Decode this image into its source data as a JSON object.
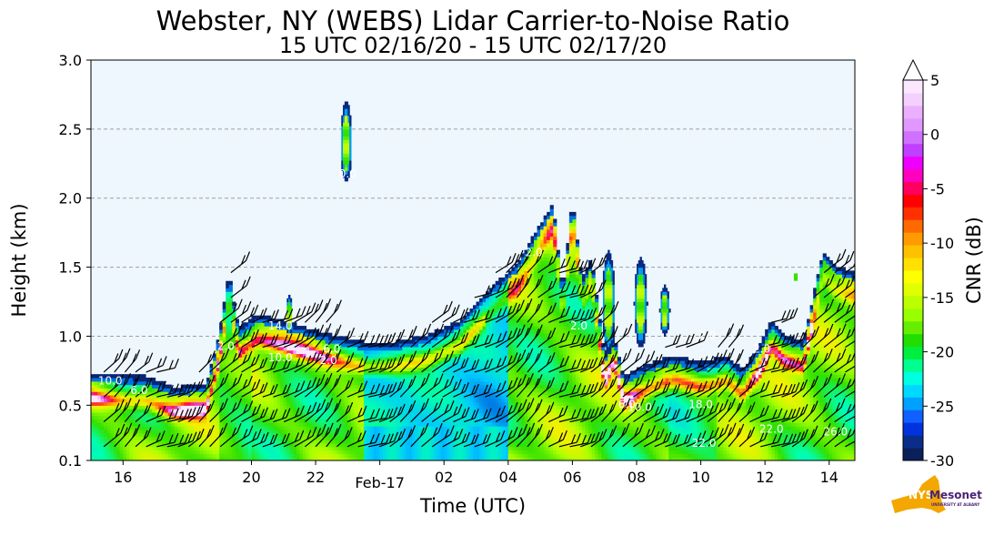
{
  "chart_data": {
    "type": "heatmap",
    "title": "Webster, NY (WEBS) Lidar Carrier-to-Noise Ratio",
    "subtitle": "15 UTC 02/16/20 - 15 UTC 02/17/20",
    "xlabel": "Time (UTC)",
    "ylabel": "Height (km)",
    "x_range_hours": [
      15,
      38.8
    ],
    "x_ticks": [
      {
        "h": 16,
        "label": "16"
      },
      {
        "h": 18,
        "label": "18"
      },
      {
        "h": 20,
        "label": "20"
      },
      {
        "h": 22,
        "label": "22"
      },
      {
        "h": 24,
        "label": "Feb-17"
      },
      {
        "h": 26,
        "label": "02"
      },
      {
        "h": 28,
        "label": "04"
      },
      {
        "h": 30,
        "label": "06"
      },
      {
        "h": 32,
        "label": "08"
      },
      {
        "h": 34,
        "label": "10"
      },
      {
        "h": 36,
        "label": "12"
      },
      {
        "h": 38,
        "label": "14"
      }
    ],
    "ylim": [
      0.1,
      3.0
    ],
    "y_ticks": [
      {
        "v": 0.1,
        "label": "0.1"
      },
      {
        "v": 0.5,
        "label": "0.5"
      },
      {
        "v": 1.0,
        "label": "1.0"
      },
      {
        "v": 1.5,
        "label": "1.5"
      },
      {
        "v": 2.0,
        "label": "2.0"
      },
      {
        "v": 2.5,
        "label": "2.5"
      },
      {
        "v": 3.0,
        "label": "3.0"
      }
    ],
    "grid": "horizontal dashed",
    "colorbar": {
      "label": "CNR (dB)",
      "min": -30,
      "max": 5,
      "ticks": [
        {
          "v": 5,
          "label": "5"
        },
        {
          "v": 0,
          "label": "0"
        },
        {
          "v": -5,
          "label": "-5"
        },
        {
          "v": -10,
          "label": "-10"
        },
        {
          "v": -15,
          "label": "-15"
        },
        {
          "v": -20,
          "label": "-20"
        },
        {
          "v": -25,
          "label": "-25"
        },
        {
          "v": -30,
          "label": "-30"
        }
      ],
      "colors": [
        "#0b1f5a",
        "#0a2d8a",
        "#0033dd",
        "#1060ff",
        "#00a0ff",
        "#00d8ff",
        "#00ffe0",
        "#00ff90",
        "#00ee40",
        "#22dd00",
        "#66ee00",
        "#99ff00",
        "#bbff00",
        "#e0ff00",
        "#ffff00",
        "#ffe000",
        "#ffc000",
        "#ff9a00",
        "#ff6a00",
        "#ff3000",
        "#ff0000",
        "#ff0060",
        "#ff00c0",
        "#ee00ff",
        "#c040ff",
        "#d070ff",
        "#e098ff",
        "#eab0ff",
        "#f4d0ff",
        "#fbe8ff"
      ]
    },
    "contour_labels": [
      {
        "h": 15.6,
        "v": 0.65,
        "text": "10.0"
      },
      {
        "h": 16.5,
        "v": 0.58,
        "text": "6.0"
      },
      {
        "h": 19.2,
        "v": 0.9,
        "text": "2.0"
      },
      {
        "h": 20.9,
        "v": 1.05,
        "text": "14.0"
      },
      {
        "h": 20.9,
        "v": 0.82,
        "text": "10.0"
      },
      {
        "h": 22.5,
        "v": 0.88,
        "text": "6.0"
      },
      {
        "h": 22.4,
        "v": 0.8,
        "text": "2.0"
      },
      {
        "h": 23.0,
        "v": 2.15,
        "text": "0.0"
      },
      {
        "h": 28.8,
        "v": 1.58,
        "text": "2.0"
      },
      {
        "h": 30.2,
        "v": 1.05,
        "text": "2.0"
      },
      {
        "h": 31.7,
        "v": 0.48,
        "text": "6.0"
      },
      {
        "h": 32.1,
        "v": 0.46,
        "text": "10.0"
      },
      {
        "h": 34.2,
        "v": 0.98,
        "text": "2.0"
      },
      {
        "h": 34.0,
        "v": 0.48,
        "text": "18.0"
      },
      {
        "h": 34.1,
        "v": 0.2,
        "text": "22.0"
      },
      {
        "h": 35.9,
        "v": 0.88,
        "text": "2.0"
      },
      {
        "h": 36.2,
        "v": 0.3,
        "text": "22.0"
      },
      {
        "h": 38.2,
        "v": 0.28,
        "text": "26.0"
      }
    ]
  },
  "logo": {
    "name": "nys-mesonet-logo",
    "text_main": "Mesonet",
    "text_sub": "UNIVERSITY AT ALBANY"
  }
}
